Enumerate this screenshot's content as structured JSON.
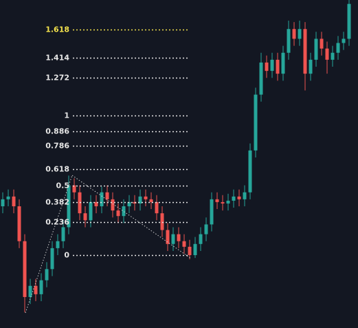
{
  "chart_data": {
    "type": "candlestick",
    "ylim": [
      -0.522,
      1.828
    ],
    "yticks": [
      1.618,
      1.414,
      1.272,
      1,
      0.886,
      0.786,
      0.618,
      0.5,
      0.382,
      0.236,
      0
    ],
    "tick_colors": [
      "#f2e14c",
      "#e6e6e6",
      "#e6e6e6",
      "#e6e6e6",
      "#e6e6e6",
      "#e6e6e6",
      "#e6e6e6",
      "#e6e6e6",
      "#e6e6e6",
      "#e6e6e6",
      "#e6e6e6"
    ],
    "up_color": "#26a69a",
    "down_color": "#ef5350",
    "open": [
      0.35,
      0.4,
      0.42,
      0.35,
      0.1,
      -0.3,
      -0.22,
      -0.28,
      -0.18,
      -0.1,
      0.05,
      0.1,
      0.2,
      0.5,
      0.45,
      0.3,
      0.25,
      0.38,
      0.35,
      0.45,
      0.4,
      0.32,
      0.28,
      0.35,
      0.38,
      0.37,
      0.42,
      0.4,
      0.38,
      0.3,
      0.18,
      0.08,
      0.15,
      0.1,
      0.06,
      0,
      0.08,
      0.15,
      0.22,
      0.4,
      0.38,
      0.37,
      0.39,
      0.42,
      0.4,
      0.45,
      0.75,
      1.15,
      1.38,
      1.32,
      1.4,
      1.3,
      1.45,
      1.62,
      1.55,
      1.62,
      1.3,
      1.4,
      1.55,
      1.48,
      1.4,
      1.45,
      1.52,
      1.55
    ],
    "high": [
      0.45,
      0.47,
      0.47,
      0.4,
      0.15,
      -0.17,
      -0.17,
      -0.13,
      -0.05,
      0.1,
      0.15,
      0.25,
      0.57,
      0.55,
      0.5,
      0.35,
      0.43,
      0.43,
      0.49,
      0.5,
      0.45,
      0.37,
      0.4,
      0.43,
      0.43,
      0.47,
      0.47,
      0.45,
      0.43,
      0.35,
      0.23,
      0.2,
      0.2,
      0.15,
      0.11,
      0.13,
      0.2,
      0.27,
      0.45,
      0.45,
      0.43,
      0.44,
      0.47,
      0.47,
      0.5,
      0.8,
      1.2,
      1.45,
      1.43,
      1.45,
      1.45,
      1.5,
      1.68,
      1.67,
      1.68,
      1.67,
      1.45,
      1.6,
      1.6,
      1.53,
      1.5,
      1.57,
      1.6,
      1.83
    ],
    "low": [
      0.3,
      0.35,
      0.3,
      0.05,
      -0.41,
      -0.35,
      -0.33,
      -0.33,
      -0.23,
      -0.15,
      0,
      0.05,
      0.15,
      0.4,
      0.25,
      0.2,
      0.2,
      0.3,
      0.3,
      0.35,
      0.27,
      0.23,
      0.23,
      0.3,
      0.32,
      0.32,
      0.35,
      0.33,
      0.25,
      0.13,
      0.03,
      0.03,
      0.05,
      0.01,
      -0.03,
      -0.02,
      0.03,
      0.1,
      0.17,
      0.33,
      0.32,
      0.32,
      0.34,
      0.35,
      0.35,
      0.4,
      0.7,
      1.1,
      1.27,
      1.27,
      1.25,
      1.25,
      1.4,
      1.5,
      1.5,
      1.18,
      1.25,
      1.35,
      1.43,
      1.3,
      1.35,
      1.4,
      1.47,
      1.5
    ],
    "close": [
      0.4,
      0.42,
      0.35,
      0.1,
      -0.3,
      -0.22,
      -0.28,
      -0.18,
      -0.1,
      0.05,
      0.1,
      0.2,
      0.5,
      0.45,
      0.3,
      0.25,
      0.38,
      0.35,
      0.45,
      0.4,
      0.32,
      0.28,
      0.35,
      0.38,
      0.37,
      0.42,
      0.4,
      0.38,
      0.3,
      0.18,
      0.08,
      0.15,
      0.1,
      0.06,
      0,
      0.08,
      0.15,
      0.22,
      0.4,
      0.38,
      0.37,
      0.39,
      0.42,
      0.4,
      0.45,
      0.75,
      1.15,
      1.38,
      1.32,
      1.4,
      1.3,
      1.45,
      1.62,
      1.55,
      1.62,
      1.3,
      1.4,
      1.55,
      1.48,
      1.4,
      1.45,
      1.52,
      1.55,
      1.8
    ]
  }
}
